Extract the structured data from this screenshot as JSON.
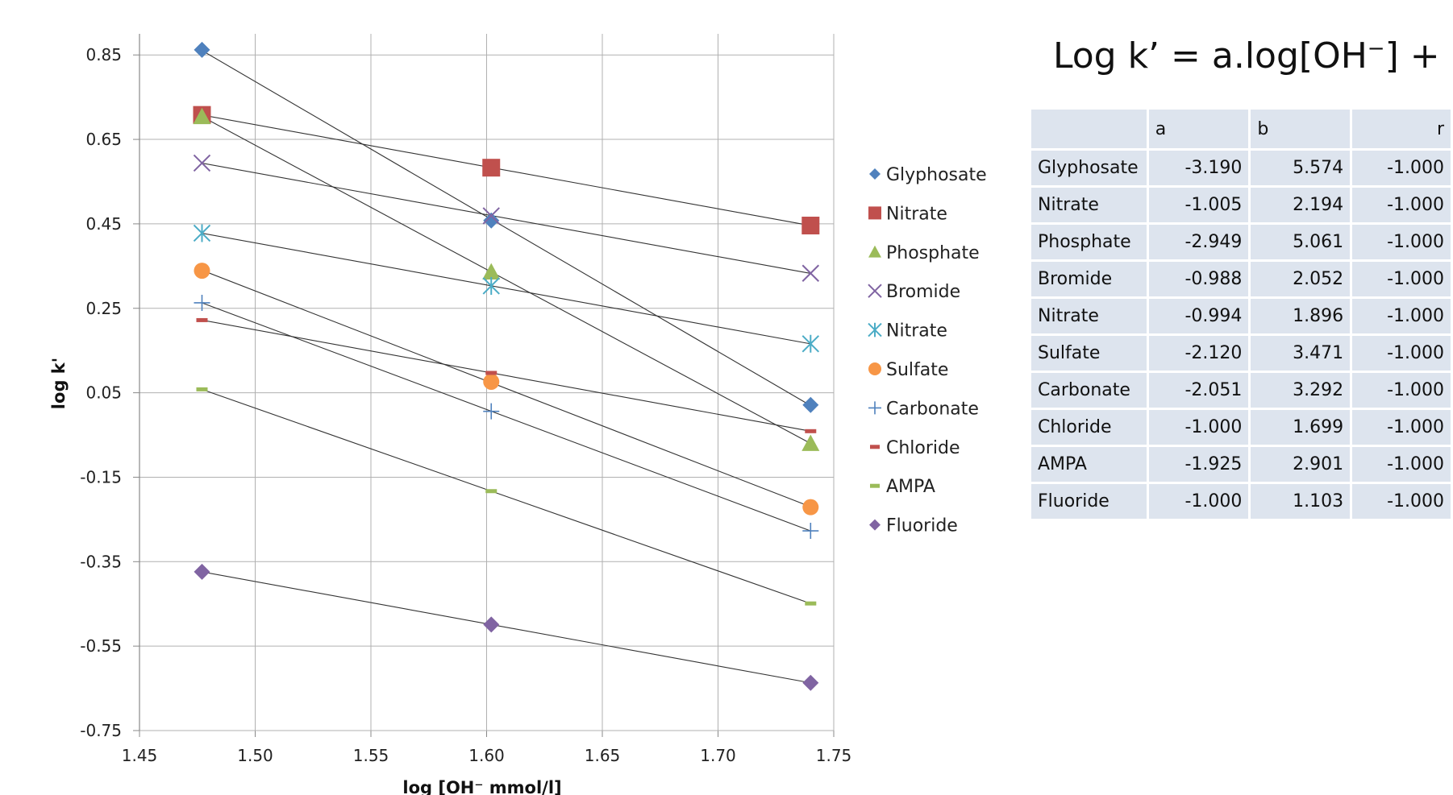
{
  "chart_data": {
    "type": "scatter",
    "xlabel": "log [OH⁻ mmol/l]",
    "ylabel": "log k'",
    "xlim": [
      1.45,
      1.75
    ],
    "ylim": [
      -0.75,
      0.9
    ],
    "x_ticks": [
      "1.45",
      "1.50",
      "1.55",
      "1.60",
      "1.65",
      "1.70",
      "1.75"
    ],
    "y_ticks": [
      "0.85",
      "0.65",
      "0.45",
      "0.25",
      "0.05",
      "-0.15",
      "-0.35",
      "-0.55",
      "-0.75"
    ],
    "grid": true,
    "trendlines": true,
    "legend_position": "right",
    "series": [
      {
        "name": "Glyphosate",
        "marker": "diamond",
        "color": "#4f81bd",
        "x": [
          1.477,
          1.602,
          1.74
        ],
        "y": [
          0.862,
          0.458,
          0.021
        ]
      },
      {
        "name": "Nitrate",
        "marker": "square",
        "color": "#c0504d",
        "x": [
          1.477,
          1.602,
          1.74
        ],
        "y": [
          0.708,
          0.583,
          0.446
        ]
      },
      {
        "name": "Phosphate",
        "marker": "triangle",
        "color": "#9bbb59",
        "x": [
          1.477,
          1.602,
          1.74
        ],
        "y": [
          0.704,
          0.336,
          -0.07
        ]
      },
      {
        "name": "Bromide",
        "marker": "x",
        "color": "#8064a2",
        "x": [
          1.477,
          1.602,
          1.74
        ],
        "y": [
          0.594,
          0.469,
          0.333
        ]
      },
      {
        "name": "Nitrate",
        "marker": "asterisk",
        "color": "#4bacc6",
        "x": [
          1.477,
          1.602,
          1.74
        ],
        "y": [
          0.428,
          0.303,
          0.166
        ]
      },
      {
        "name": "Sulfate",
        "marker": "circle",
        "color": "#f79646",
        "x": [
          1.477,
          1.602,
          1.74
        ],
        "y": [
          0.339,
          0.076,
          -0.221
        ]
      },
      {
        "name": "Carbonate",
        "marker": "plus",
        "color": "#4f81bd",
        "x": [
          1.477,
          1.602,
          1.74
        ],
        "y": [
          0.263,
          0.006,
          -0.277
        ]
      },
      {
        "name": "Chloride",
        "marker": "dash",
        "color": "#c0504d",
        "x": [
          1.477,
          1.602,
          1.74
        ],
        "y": [
          0.222,
          0.097,
          -0.041
        ]
      },
      {
        "name": "AMPA",
        "marker": "dash",
        "color": "#9bbb59",
        "x": [
          1.477,
          1.602,
          1.74
        ],
        "y": [
          0.058,
          -0.183,
          -0.449
        ]
      },
      {
        "name": "Fluoride",
        "marker": "diamond",
        "color": "#8064a2",
        "x": [
          1.477,
          1.602,
          1.74
        ],
        "y": [
          -0.374,
          -0.499,
          -0.637
        ]
      }
    ]
  },
  "equation": {
    "lhs": "Log k’ = a.log[OH",
    "sup": "−",
    "rhs": "] + b"
  },
  "table": {
    "headers": [
      "",
      "a",
      "b",
      "r"
    ],
    "rows": [
      {
        "name": "Glyphosate",
        "a": "-3.190",
        "b": "5.574",
        "r": "-1.000"
      },
      {
        "name": "Nitrate",
        "a": "-1.005",
        "b": "2.194",
        "r": "-1.000"
      },
      {
        "name": "Phosphate",
        "a": "-2.949",
        "b": "5.061",
        "r": "-1.000"
      },
      {
        "name": "Bromide",
        "a": "-0.988",
        "b": "2.052",
        "r": "-1.000"
      },
      {
        "name": "Nitrate",
        "a": "-0.994",
        "b": "1.896",
        "r": "-1.000"
      },
      {
        "name": "Sulfate",
        "a": "-2.120",
        "b": "3.471",
        "r": "-1.000"
      },
      {
        "name": "Carbonate",
        "a": "-2.051",
        "b": "3.292",
        "r": "-1.000"
      },
      {
        "name": "Chloride",
        "a": "-1.000",
        "b": "1.699",
        "r": "-1.000"
      },
      {
        "name": "AMPA",
        "a": "-1.925",
        "b": "2.901",
        "r": "-1.000"
      },
      {
        "name": "Fluoride",
        "a": "-1.000",
        "b": "1.103",
        "r": "-1.000"
      }
    ]
  }
}
